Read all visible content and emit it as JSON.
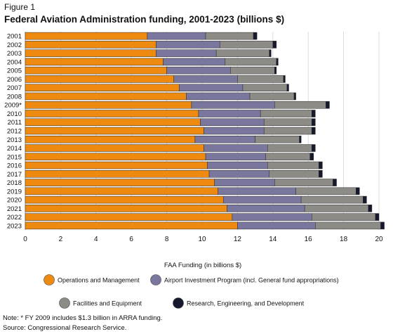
{
  "figure_label": "Figure 1",
  "title": "Federal Aviation Administration funding, 2001-2023 (billions $)",
  "note": "Note: * FY 2009 includes $1.3 billion in ARRA funding.",
  "source": "Source: Congressional Research Service.",
  "chart_data": {
    "type": "bar",
    "orientation": "horizontal",
    "stacked": true,
    "title": "Federal Aviation Administration funding, 2001-2023 (billions $)",
    "xlabel": "FAA Funding (in billions $)",
    "ylabel": "",
    "xlim": [
      0,
      20
    ],
    "xticks": [
      0,
      2,
      4,
      6,
      8,
      10,
      12,
      14,
      16,
      18,
      20
    ],
    "grid": true,
    "legend_position": "bottom",
    "categories": [
      "2001",
      "2002",
      "2003",
      "2004",
      "2005",
      "2006",
      "2007",
      "2008",
      "2009*",
      "2010",
      "2011",
      "2012",
      "2013",
      "2014",
      "2015",
      "2016",
      "2017",
      "2018",
      "2019",
      "2020",
      "2021",
      "2022",
      "2023"
    ],
    "series": [
      {
        "name": "Operations and Management",
        "color": "#ee8a0f",
        "values": [
          6.9,
          7.4,
          7.4,
          7.8,
          8.0,
          8.4,
          8.7,
          9.1,
          9.4,
          9.8,
          9.9,
          10.1,
          9.6,
          10.1,
          10.2,
          10.3,
          10.4,
          10.7,
          10.9,
          11.2,
          11.4,
          11.7,
          12.0
        ]
      },
      {
        "name": "Airport Investment Program (incl. General fund appropriations)",
        "color": "#7a779e",
        "values": [
          3.3,
          3.6,
          3.4,
          3.5,
          3.6,
          3.6,
          3.6,
          3.6,
          4.7,
          3.5,
          3.6,
          3.4,
          3.4,
          3.6,
          3.4,
          3.4,
          3.4,
          3.4,
          4.4,
          4.4,
          4.4,
          4.5,
          4.4
        ]
      },
      {
        "name": "Facilities and Equipment",
        "color": "#8d8b86",
        "values": [
          2.7,
          3.0,
          3.0,
          2.9,
          2.5,
          2.6,
          2.5,
          2.5,
          2.9,
          2.9,
          2.7,
          2.7,
          2.5,
          2.5,
          2.5,
          2.9,
          2.8,
          3.3,
          3.4,
          3.5,
          3.6,
          3.6,
          3.7
        ]
      },
      {
        "name": "Research, Engineering, and Development",
        "color": "#16182e",
        "values": [
          0.2,
          0.2,
          0.1,
          0.1,
          0.1,
          0.1,
          0.1,
          0.1,
          0.2,
          0.2,
          0.2,
          0.2,
          0.1,
          0.2,
          0.2,
          0.2,
          0.2,
          0.2,
          0.2,
          0.2,
          0.2,
          0.2,
          0.2
        ]
      }
    ]
  }
}
